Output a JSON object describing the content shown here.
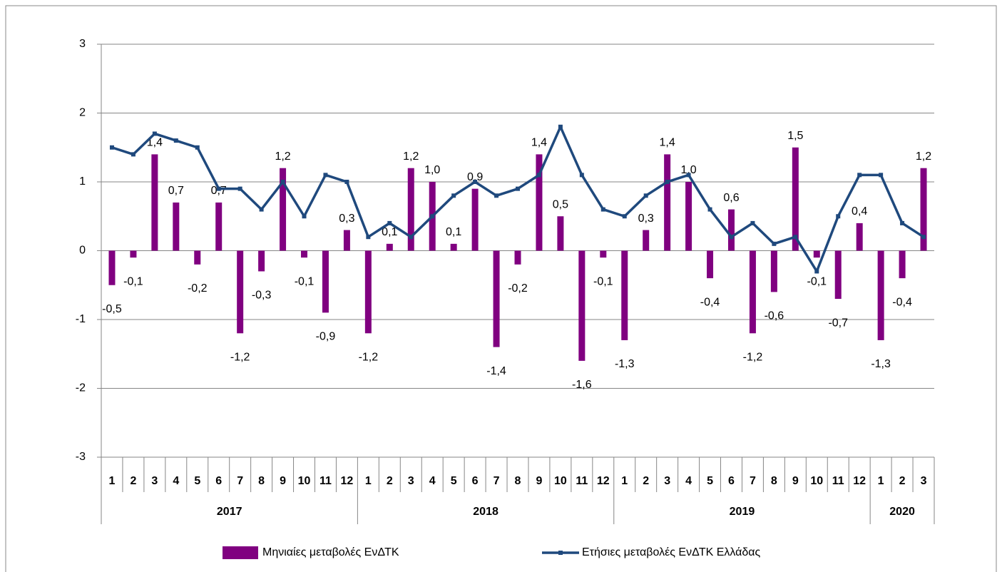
{
  "chart_data": {
    "type": "bar-line",
    "categories": [
      "1",
      "2",
      "3",
      "4",
      "5",
      "6",
      "7",
      "8",
      "9",
      "10",
      "11",
      "12",
      "1",
      "2",
      "3",
      "4",
      "5",
      "6",
      "7",
      "8",
      "9",
      "10",
      "11",
      "12",
      "1",
      "2",
      "3",
      "4",
      "5",
      "6",
      "7",
      "8",
      "9",
      "10",
      "11",
      "12",
      "1",
      "2",
      "3"
    ],
    "groups": [
      "2017",
      "2018",
      "2019",
      "2020"
    ],
    "series": [
      {
        "name": "Μηνιαίες μεταβολές ΕνΔΤΚ",
        "type": "bar",
        "color": "#800080",
        "values": [
          -0.5,
          -0.1,
          1.4,
          0.7,
          -0.2,
          0.7,
          -1.2,
          -0.3,
          1.2,
          -0.1,
          -0.9,
          0.3,
          -1.2,
          0.1,
          1.2,
          1.0,
          0.1,
          0.9,
          -1.4,
          -0.2,
          1.4,
          0.5,
          -1.6,
          -0.1,
          -1.3,
          0.3,
          1.4,
          1.0,
          -0.4,
          0.6,
          -1.2,
          -0.6,
          1.5,
          -0.1,
          -0.7,
          0.4,
          -1.3,
          -0.4,
          1.2
        ],
        "value_labels": [
          "-0,5",
          "-0,1",
          "1,4",
          "0,7",
          "-0,2",
          "0,7",
          "-1,2",
          "-0,3",
          "1,2",
          "-0,1",
          "-0,9",
          "0,3",
          "-1,2",
          "0,1",
          "1,2",
          "1,0",
          "0,1",
          "0,9",
          "-1,4",
          "-0,2",
          "1,4",
          "0,5",
          "-1,6",
          "-0,1",
          "-1,3",
          "0,3",
          "1,4",
          "1,0",
          "-0,4",
          "0,6",
          "-1,2",
          "-0,6",
          "1,5",
          "-0,1",
          "-0,7",
          "0,4",
          "-1,3",
          "-0,4",
          "1,2"
        ]
      },
      {
        "name": "Ετήσιες μεταβολές ΕνΔΤΚ Ελλάδας",
        "type": "line",
        "color": "#1f497d",
        "values": [
          1.5,
          1.4,
          1.7,
          1.6,
          1.5,
          0.9,
          0.9,
          0.6,
          1.0,
          0.5,
          1.1,
          1.0,
          0.2,
          0.4,
          0.2,
          0.5,
          0.8,
          1.0,
          0.8,
          0.9,
          1.1,
          1.8,
          1.1,
          0.6,
          0.5,
          0.8,
          1.0,
          1.1,
          0.6,
          0.2,
          0.4,
          0.1,
          0.2,
          -0.3,
          0.5,
          1.1,
          1.1,
          0.4,
          0.2
        ]
      }
    ],
    "ylim": [
      -3,
      3
    ],
    "yticks": [
      -3,
      -2,
      -1,
      0,
      1,
      2,
      3
    ],
    "grid": true,
    "legend": "bottom"
  }
}
